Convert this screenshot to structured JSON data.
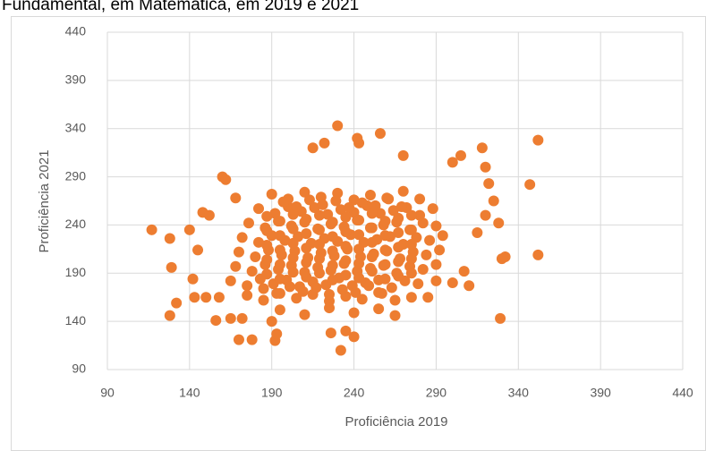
{
  "chart_data": {
    "type": "scatter",
    "title": "Fundamental, em Matemática, em 2019 e 2021",
    "x_label": "Proficiência 2019",
    "y_label": "Proficiência 2021",
    "color": "#ed7d31",
    "grid": true,
    "xlim": [
      90,
      440
    ],
    "xticks": [
      90,
      140,
      190,
      240,
      290,
      340,
      390,
      440
    ],
    "ylim": [
      90,
      440
    ],
    "yticks": [
      90,
      140,
      190,
      240,
      290,
      340,
      390,
      440
    ],
    "x": [
      165,
      175,
      183,
      191,
      199,
      207,
      215,
      223,
      231,
      239,
      247,
      255,
      263,
      271,
      279,
      168,
      178,
      186,
      194,
      202,
      210,
      218,
      226,
      234,
      242,
      250,
      258,
      266,
      274,
      282,
      290,
      170,
      180,
      188,
      196,
      204,
      212,
      220,
      228,
      236,
      244,
      252,
      260,
      268,
      276,
      284,
      292,
      172,
      182,
      190,
      198,
      206,
      214,
      222,
      230,
      238,
      246,
      254,
      262,
      270,
      278,
      286,
      294,
      176,
      186,
      194,
      202,
      210,
      218,
      226,
      234,
      242,
      250,
      258,
      266,
      274,
      282,
      290,
      182,
      192,
      200,
      208,
      216,
      224,
      232,
      240,
      248,
      256,
      264,
      272,
      280,
      288,
      190,
      200,
      210,
      220,
      230,
      240,
      250,
      260,
      270,
      280,
      175,
      185,
      195,
      205,
      215,
      225,
      235,
      245,
      255,
      265,
      275,
      195,
      210,
      225,
      240,
      255,
      265,
      187,
      195,
      203,
      211,
      219,
      227,
      235,
      243,
      251,
      259,
      267,
      275,
      187,
      195,
      203,
      211,
      219,
      227,
      235,
      243,
      251,
      259,
      267,
      275,
      187,
      195,
      203,
      211,
      219,
      227,
      235,
      243,
      251,
      259,
      267,
      275,
      187,
      195,
      203,
      211,
      219,
      227,
      235,
      243,
      251,
      259,
      267,
      275,
      187,
      195,
      203,
      211,
      219,
      227,
      235,
      243,
      251,
      259,
      267,
      275,
      197,
      205,
      213,
      221,
      229,
      237,
      245,
      253,
      261,
      269,
      185,
      193,
      201,
      209,
      217,
      225,
      233,
      241,
      249,
      257,
      117,
      128,
      129,
      128,
      132,
      140,
      142,
      143,
      145,
      148,
      152,
      150,
      156,
      158,
      160,
      162,
      168,
      165,
      170,
      172,
      178,
      190,
      192,
      193,
      215,
      222,
      230,
      226,
      232,
      235,
      240,
      243,
      242,
      256,
      270,
      285,
      290,
      300,
      305,
      318,
      320,
      322,
      328,
      330,
      332,
      329,
      347,
      352,
      352,
      310,
      307,
      300,
      315,
      320,
      325
    ],
    "values": [
      182,
      177,
      184,
      179,
      183,
      176,
      181,
      178,
      185,
      177,
      180,
      183,
      175,
      182,
      179,
      197,
      192,
      199,
      194,
      198,
      191,
      196,
      193,
      200,
      192,
      195,
      198,
      190,
      197,
      194,
      199,
      212,
      207,
      214,
      209,
      213,
      206,
      211,
      208,
      215,
      207,
      210,
      213,
      205,
      212,
      209,
      214,
      227,
      222,
      229,
      224,
      228,
      221,
      226,
      223,
      230,
      222,
      225,
      228,
      220,
      227,
      224,
      229,
      242,
      237,
      244,
      239,
      243,
      236,
      241,
      238,
      245,
      237,
      240,
      243,
      235,
      242,
      239,
      257,
      252,
      259,
      254,
      258,
      251,
      256,
      253,
      260,
      252,
      255,
      258,
      250,
      257,
      272,
      267,
      274,
      269,
      273,
      266,
      271,
      268,
      275,
      267,
      167,
      162,
      169,
      164,
      168,
      161,
      166,
      163,
      170,
      162,
      165,
      152,
      147,
      154,
      149,
      153,
      146,
      189,
      184,
      191,
      186,
      190,
      183,
      188,
      185,
      192,
      184,
      187,
      190,
      204,
      199,
      206,
      201,
      205,
      198,
      203,
      200,
      207,
      199,
      202,
      205,
      219,
      214,
      221,
      216,
      220,
      213,
      218,
      215,
      222,
      214,
      217,
      220,
      234,
      229,
      236,
      231,
      235,
      228,
      233,
      230,
      237,
      229,
      232,
      235,
      249,
      244,
      251,
      246,
      250,
      243,
      248,
      245,
      252,
      244,
      247,
      250,
      264,
      259,
      266,
      261,
      265,
      258,
      263,
      260,
      267,
      259,
      174,
      169,
      176,
      171,
      175,
      168,
      173,
      170,
      177,
      169,
      235,
      226,
      196,
      146,
      159,
      235,
      184,
      165,
      214,
      253,
      250,
      165,
      141,
      165,
      290,
      287,
      268,
      143,
      121,
      143,
      121,
      140,
      120,
      127,
      320,
      325,
      343,
      128,
      110,
      130,
      124,
      325,
      330,
      335,
      312,
      165,
      182,
      305,
      312,
      320,
      300,
      283,
      242,
      205,
      207,
      143,
      282,
      328,
      209,
      177,
      192,
      180,
      232,
      250,
      265
    ]
  }
}
